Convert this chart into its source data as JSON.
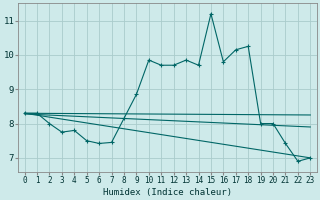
{
  "title": "",
  "xlabel": "Humidex (Indice chaleur)",
  "background_color": "#ceeaea",
  "grid_color": "#aacccc",
  "line_color": "#006666",
  "xlim": [
    -0.5,
    23.5
  ],
  "ylim": [
    6.6,
    11.5
  ],
  "yticks": [
    7,
    8,
    9,
    10,
    11
  ],
  "xticks": [
    0,
    1,
    2,
    3,
    4,
    5,
    6,
    7,
    8,
    9,
    10,
    11,
    12,
    13,
    14,
    15,
    16,
    17,
    18,
    19,
    20,
    21,
    22,
    23
  ],
  "main_x": [
    0,
    1,
    2,
    3,
    4,
    5,
    6,
    7,
    8,
    9,
    10,
    11,
    12,
    13,
    14,
    15,
    16,
    17,
    18,
    19,
    20,
    21,
    22,
    23
  ],
  "main_y": [
    8.3,
    8.3,
    8.0,
    7.75,
    7.8,
    7.5,
    7.42,
    7.45,
    8.15,
    8.85,
    9.85,
    9.7,
    9.7,
    9.85,
    9.7,
    11.2,
    9.8,
    10.15,
    10.25,
    8.0,
    8.0,
    7.42,
    6.9,
    7.0
  ],
  "line2_x": [
    0,
    23
  ],
  "line2_y": [
    8.3,
    8.25
  ],
  "line3_x": [
    0,
    23
  ],
  "line3_y": [
    8.3,
    7.0
  ],
  "line4_x": [
    0,
    23
  ],
  "line4_y": [
    8.28,
    7.9
  ]
}
